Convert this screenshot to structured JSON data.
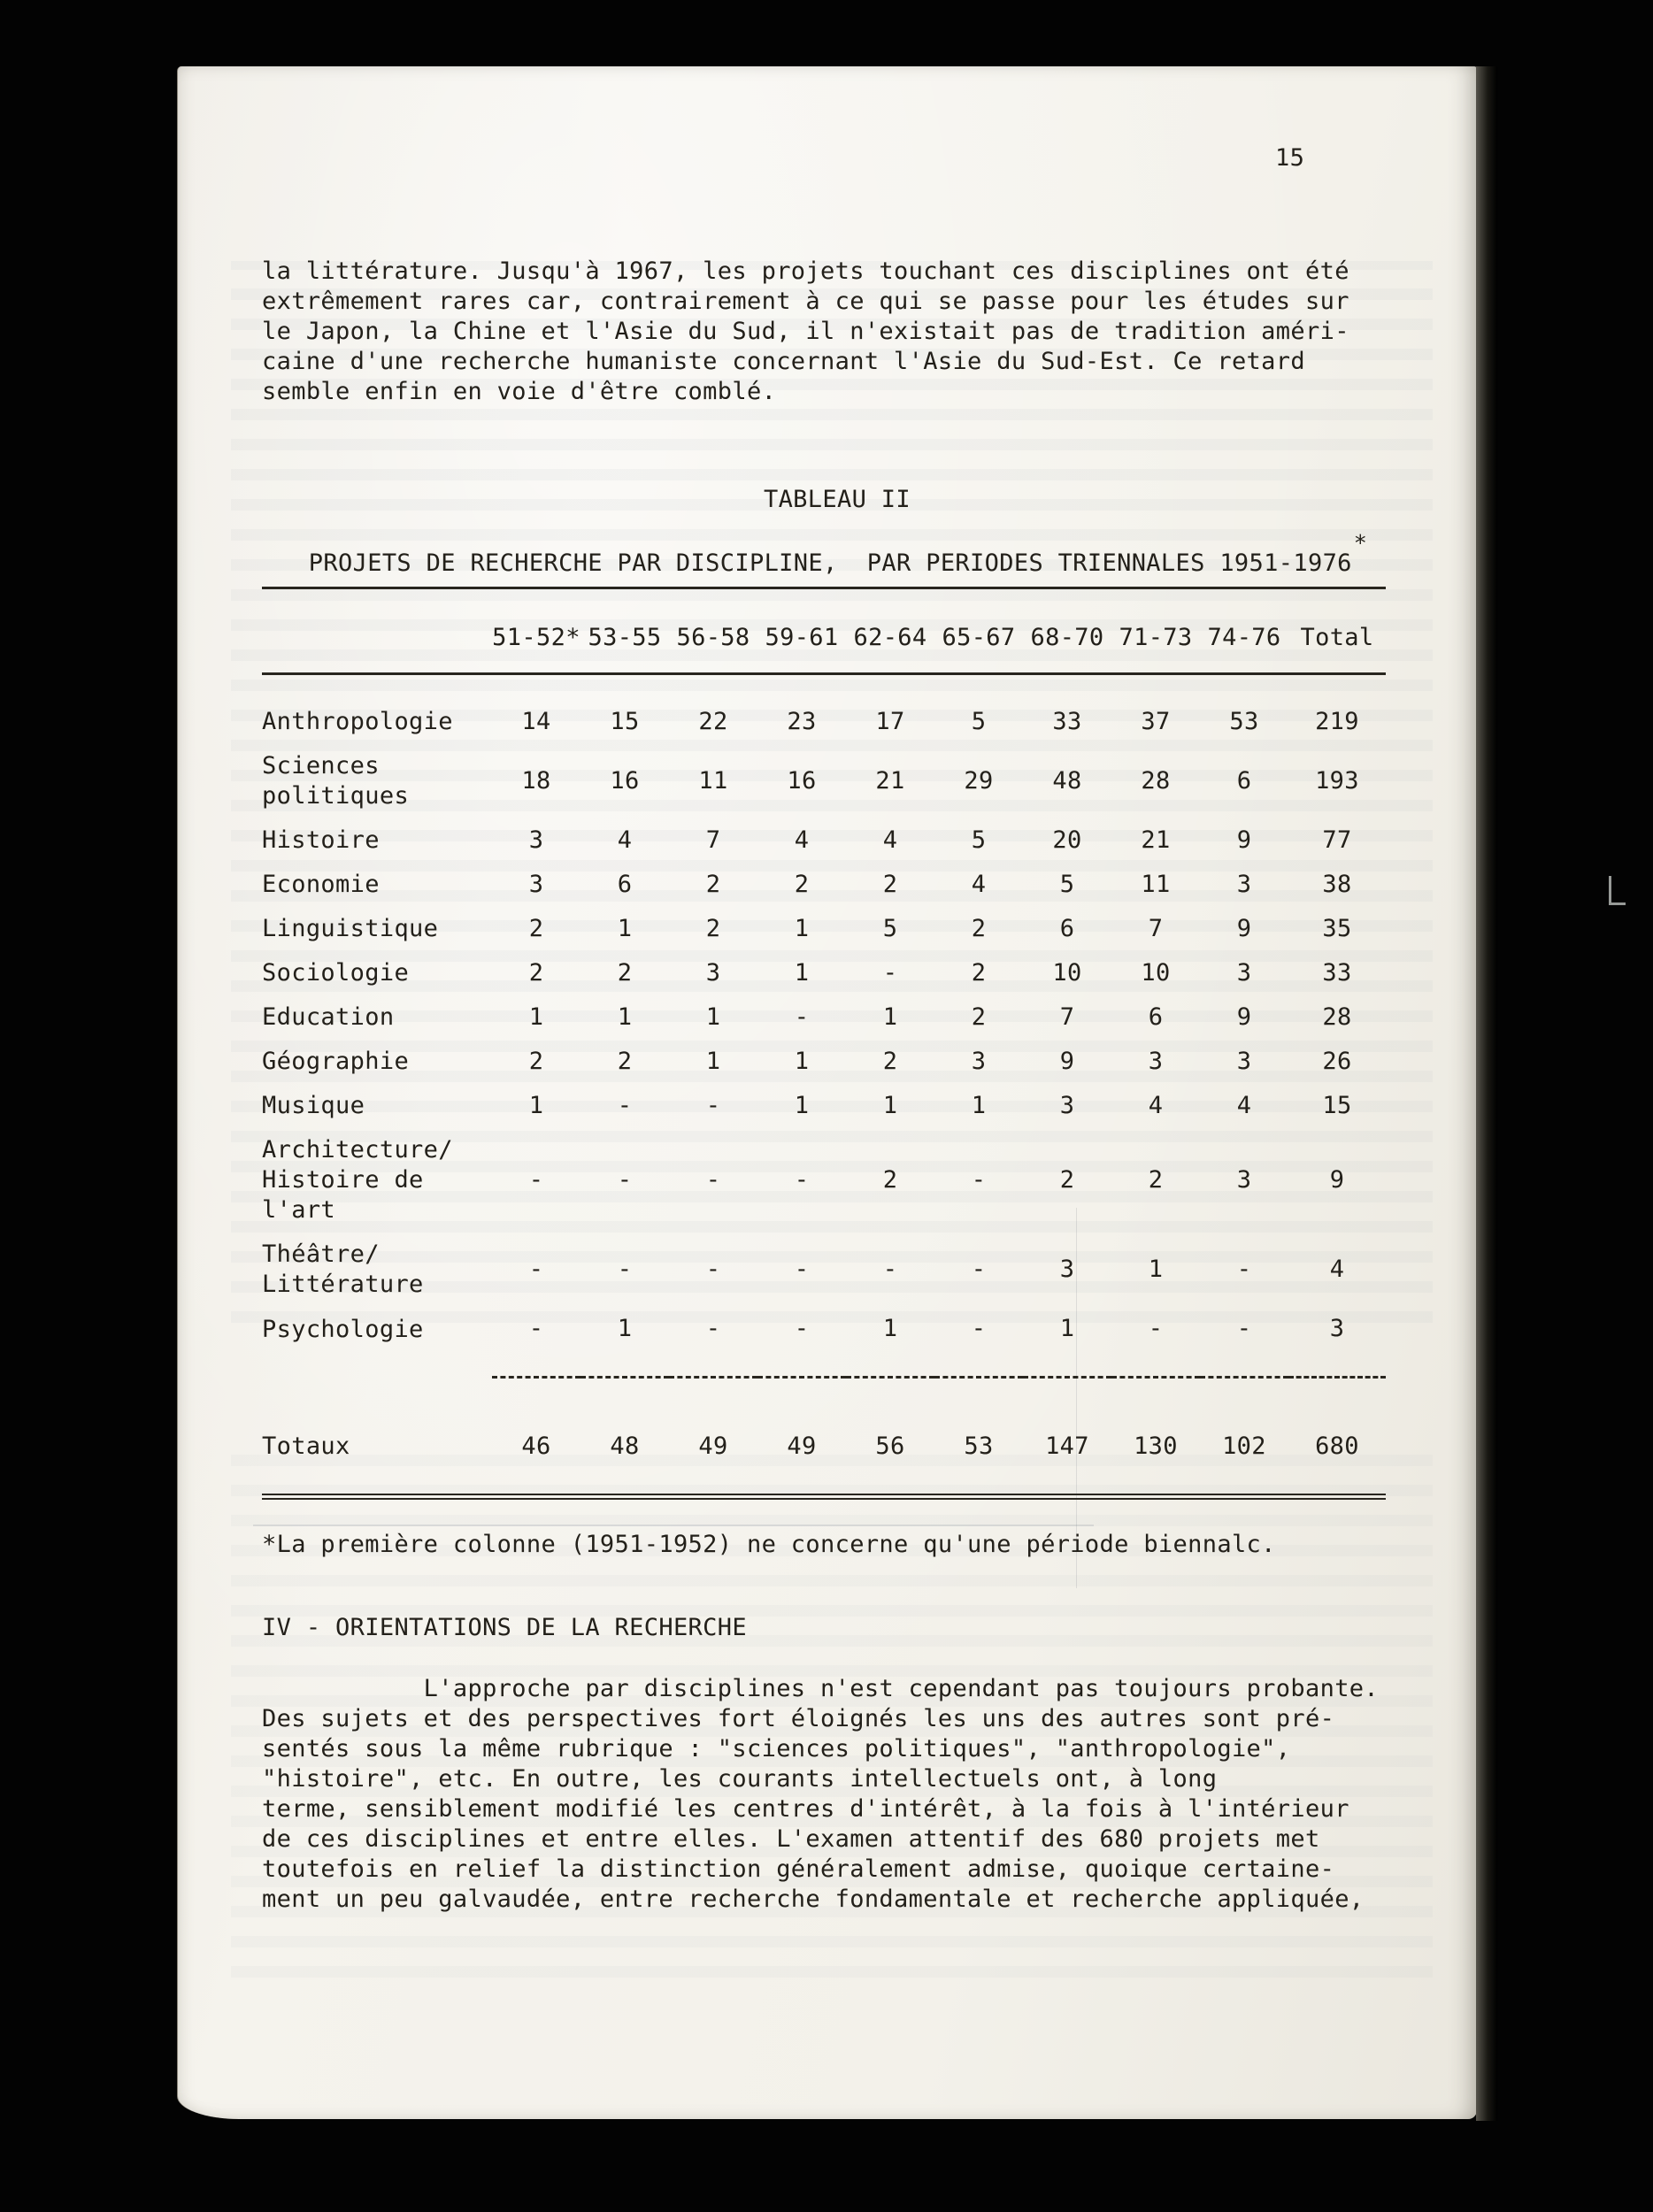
{
  "page_number": "15",
  "intro_paragraph": "la littérature. Jusqu'à 1967, les projets touchant ces disciplines ont été\nextrêmement rares car, contrairement à ce qui se passe pour les études sur\nle Japon, la Chine et l'Asie du Sud, il n'existait pas de tradition améri-\ncaine d'une recherche humaniste concernant l'Asie du Sud-Est. Ce retard\nsemble enfin en voie d'être comblé.",
  "table": {
    "caption_line1": "TABLEAU II",
    "caption_line2": "PROJETS DE RECHERCHE PAR DISCIPLINE,  PAR PERIODES TRIENNALES 1951-1976",
    "caption_superscript": "*",
    "column_headers": [
      "51-52*",
      "53-55",
      "56-58",
      "59-61",
      "62-64",
      "65-67",
      "68-70",
      "71-73",
      "74-76",
      "Total"
    ],
    "rows": [
      {
        "label": "Anthropologie",
        "values": [
          "14",
          "15",
          "22",
          "23",
          "17",
          "5",
          "33",
          "37",
          "53",
          "219"
        ]
      },
      {
        "label": "Sciences\npolitiques",
        "values": [
          "18",
          "16",
          "11",
          "16",
          "21",
          "29",
          "48",
          "28",
          "6",
          "193"
        ]
      },
      {
        "label": "Histoire",
        "values": [
          "3",
          "4",
          "7",
          "4",
          "4",
          "5",
          "20",
          "21",
          "9",
          "77"
        ]
      },
      {
        "label": "Economie",
        "values": [
          "3",
          "6",
          "2",
          "2",
          "2",
          "4",
          "5",
          "11",
          "3",
          "38"
        ]
      },
      {
        "label": "Linguistique",
        "values": [
          "2",
          "1",
          "2",
          "1",
          "5",
          "2",
          "6",
          "7",
          "9",
          "35"
        ]
      },
      {
        "label": "Sociologie",
        "values": [
          "2",
          "2",
          "3",
          "1",
          "-",
          "2",
          "10",
          "10",
          "3",
          "33"
        ]
      },
      {
        "label": "Education",
        "values": [
          "1",
          "1",
          "1",
          "-",
          "1",
          "2",
          "7",
          "6",
          "9",
          "28"
        ]
      },
      {
        "label": "Géographie",
        "values": [
          "2",
          "2",
          "1",
          "1",
          "2",
          "3",
          "9",
          "3",
          "3",
          "26"
        ]
      },
      {
        "label": "Musique",
        "values": [
          "1",
          "-",
          "-",
          "1",
          "1",
          "1",
          "3",
          "4",
          "4",
          "15"
        ]
      },
      {
        "label": "Architecture/\nHistoire de\nl'art",
        "values": [
          "-",
          "-",
          "-",
          "-",
          "2",
          "-",
          "2",
          "2",
          "3",
          "9"
        ]
      },
      {
        "label": "Théâtre/\nLittérature",
        "values": [
          "-",
          "-",
          "-",
          "-",
          "-",
          "-",
          "3",
          "1",
          "-",
          "4"
        ]
      },
      {
        "label": "Psychologie",
        "values": [
          "-",
          "1",
          "-",
          "-",
          "1",
          "-",
          "1",
          "-",
          "-",
          "3"
        ]
      }
    ],
    "totals_row": {
      "label": "Totaux",
      "values": [
        "46",
        "48",
        "49",
        "49",
        "56",
        "53",
        "147",
        "130",
        "102",
        "680"
      ]
    }
  },
  "footnote": "*La première colonne (1951-1952) ne concerne qu'une période biennalc.",
  "section_heading": "IV - ORIENTATIONS DE LA RECHERCHE",
  "body_paragraph": "           L'approche par disciplines n'est cependant pas toujours probante.\nDes sujets et des perspectives fort éloignés les uns des autres sont pré-\nsentés sous la même rubrique : \"sciences politiques\", \"anthropologie\",\n\"histoire\", etc. En outre, les courants intellectuels ont, à long\nterme, sensiblement modifié les centres d'intérêt, à la fois à l'intérieur\nde ces disciplines et entre elles. L'examen attentif des 680 projets met\ntoutefois en relief la distinction généralement admise, quoique certaine-\nment un peu galvaudée, entre recherche fondamentale et recherche appliquée,"
}
